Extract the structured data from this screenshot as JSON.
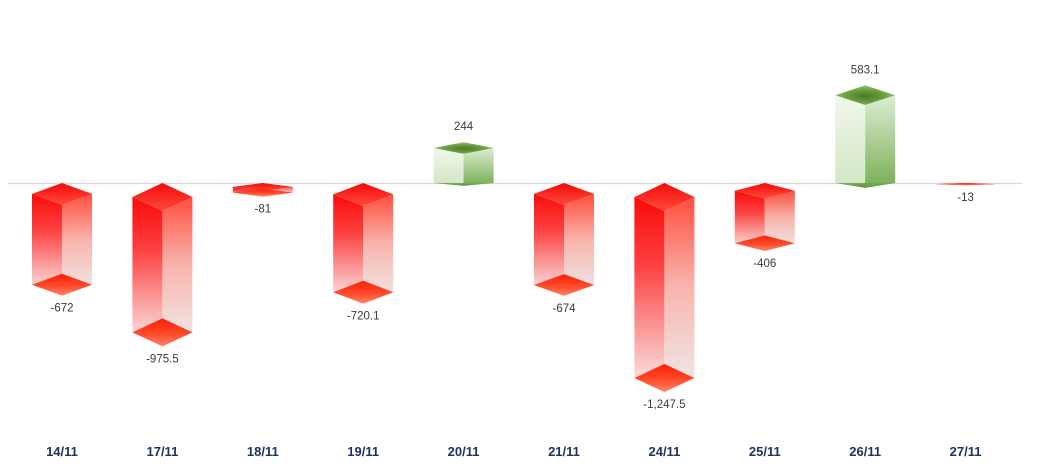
{
  "chart_data": {
    "type": "bar",
    "style": "3d-columns-positive-negative",
    "title": "",
    "xlabel": "",
    "ylabel": "",
    "grid": false,
    "legend": "none",
    "baseline_value": 0,
    "ylim": [
      -1350,
      700
    ],
    "categories": [
      "14/11",
      "17/11",
      "18/11",
      "19/11",
      "20/11",
      "21/11",
      "24/11",
      "25/11",
      "26/11",
      "27/11"
    ],
    "values": [
      -672,
      -975.5,
      -81,
      -720.1,
      244,
      -674,
      -1247.5,
      -406,
      583.1,
      -13
    ],
    "value_labels": [
      "-672",
      "-975.5",
      "-81",
      "-720.1",
      "244",
      "-674",
      "-1,247.5",
      "-406",
      "583.1",
      "-13"
    ],
    "colors": {
      "positive_bar": "#70ad47",
      "positive_bar_light": "#eaf4e4",
      "positive_cap_dark": "#4a7827",
      "negative_bar": "#fa0b0b",
      "negative_bar_light": "#f9efee",
      "negative_cap": "#fc1f06",
      "axis_line": "#d9d9d9",
      "value_label_text": "#3a3a3a",
      "axis_label_text": "#1e3263"
    }
  }
}
